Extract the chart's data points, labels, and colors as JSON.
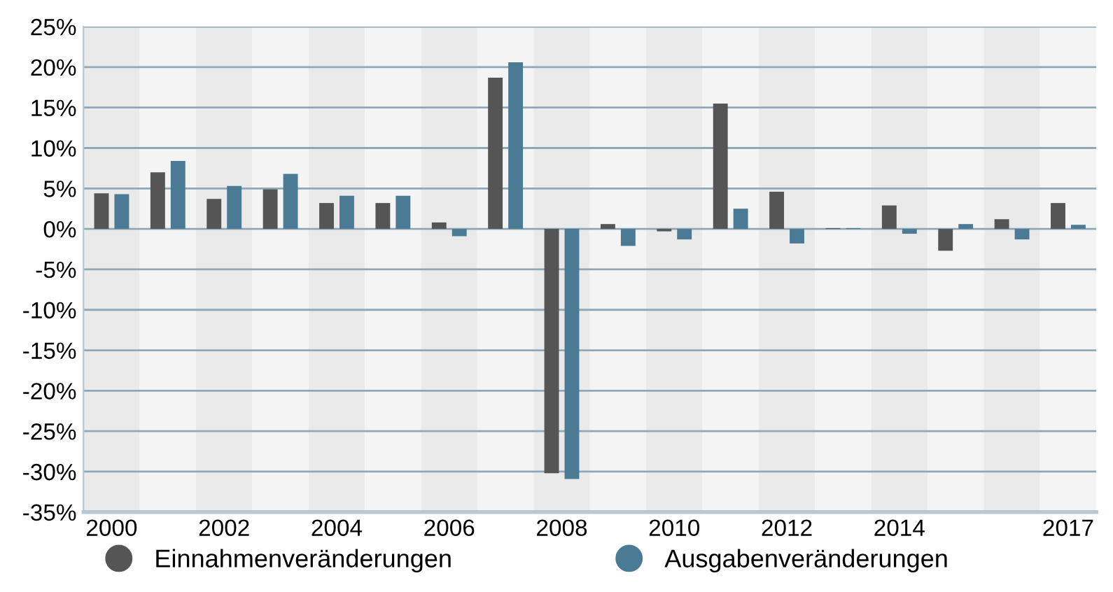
{
  "chart_data": {
    "type": "bar",
    "categories": [
      "2000",
      null,
      "2002",
      null,
      "2004",
      null,
      "2006",
      null,
      "2008",
      null,
      "2010",
      null,
      "2012",
      null,
      "2014",
      null,
      null,
      "2017"
    ],
    "series": [
      {
        "name": "Einnahmenveränderungen",
        "color": "#555555",
        "values": [
          4.4,
          7.0,
          3.7,
          4.9,
          3.2,
          3.2,
          0.8,
          18.7,
          -30.2,
          0.6,
          -0.3,
          15.5,
          4.6,
          0.1,
          2.9,
          -2.7,
          1.2,
          3.2
        ]
      },
      {
        "name": "Ausgabenveränderungen",
        "color": "#4a7a94",
        "values": [
          4.3,
          8.4,
          5.3,
          6.8,
          4.1,
          4.1,
          -0.9,
          20.6,
          -30.9,
          -2.1,
          -1.3,
          2.5,
          -1.8,
          0.1,
          -0.6,
          0.6,
          -1.3,
          0.5
        ]
      }
    ],
    "ylim": [
      -35,
      25
    ],
    "yticks": [
      {
        "value": -35,
        "label": "-35%"
      },
      {
        "value": -30,
        "label": "-30%"
      },
      {
        "value": -25,
        "label": "-25%"
      },
      {
        "value": -20,
        "label": "-20%"
      },
      {
        "value": -15,
        "label": "-15%"
      },
      {
        "value": -10,
        "label": "-10%"
      },
      {
        "value": -5,
        "label": "-5%"
      },
      {
        "value": 0,
        "label": "0%"
      },
      {
        "value": 5,
        "label": "5%"
      },
      {
        "value": 10,
        "label": "10%"
      },
      {
        "value": 15,
        "label": "15%"
      },
      {
        "value": 20,
        "label": "20%"
      },
      {
        "value": 25,
        "label": "25%"
      }
    ],
    "grid": "y",
    "legend": "bottom"
  }
}
